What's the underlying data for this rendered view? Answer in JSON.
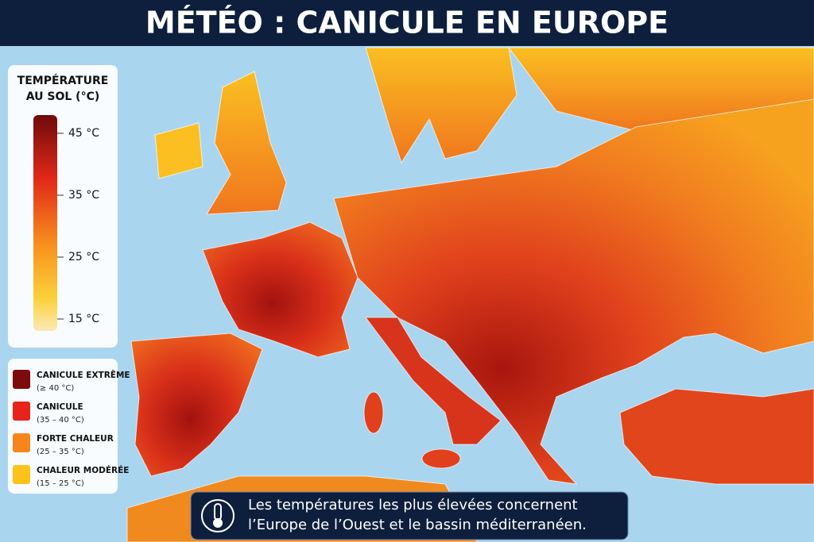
{
  "header": {
    "title": "MÉTÉO : CANICULE EN EUROPE"
  },
  "scale": {
    "title": [
      "TEMPÉRATURE",
      "AU SOL (°C)"
    ],
    "ticks": [
      "45 °C",
      "35 °C",
      "25 °C",
      "15 °C"
    ]
  },
  "legend": {
    "items": [
      {
        "label": "CANICULE EXTRÊME",
        "range": "(≥ 40 °C)",
        "color": "#7e0b0b"
      },
      {
        "label": "CANICULE",
        "range": "(35 – 40 °C)",
        "color": "#e8231c"
      },
      {
        "label": "FORTE CHALEUR",
        "range": "(25 – 35 °C)",
        "color": "#f7851d"
      },
      {
        "label": "CHALEUR MODÉRÉE",
        "range": "(15 – 25 °C)",
        "color": "#fbc21b"
      }
    ]
  },
  "note": {
    "lines": [
      "Les températures les plus élevées concernent",
      "l’Europe de l’Ouest et le bassin méditerranéen."
    ]
  }
}
